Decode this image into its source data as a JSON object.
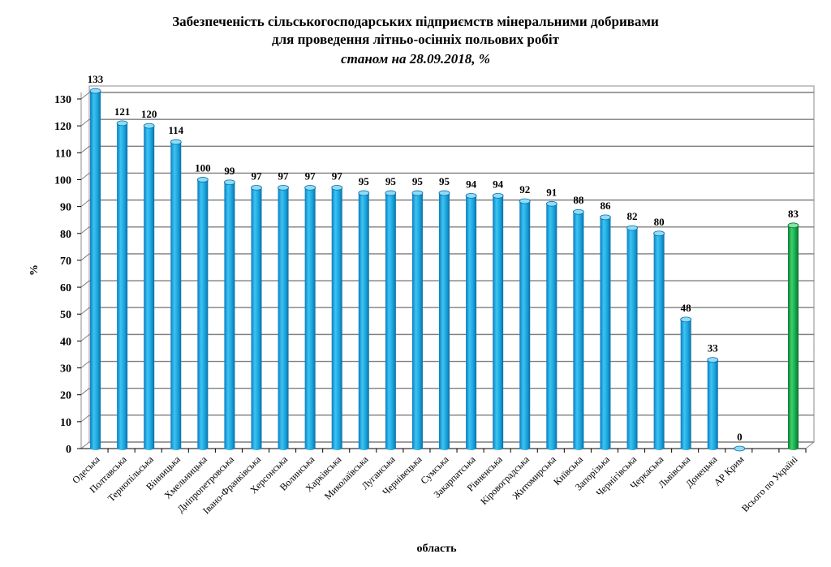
{
  "chart_data": {
    "type": "bar",
    "title": "Забезпеченість сільськогосподарських підприємств мінеральними добривами",
    "subtitle": "для проведення літньо-осінніх польових робіт",
    "date_line": "станом на 28.09.2018, %",
    "xlabel": "область",
    "ylabel": "%",
    "ylim": [
      0,
      130
    ],
    "ytick_step": 10,
    "grid": true,
    "colors": {
      "regions": "#1aa3dc",
      "regions_dark": "#0b6fa8",
      "total": "#14a84a",
      "total_dark": "#0a6e2e",
      "grid": "#7f7f7f"
    },
    "categories": [
      "Одеська",
      "Полтавська",
      "Тернопільська",
      "Вінницька",
      "Хмельницька",
      "Дніпропетровська",
      "Івано-Франківська",
      "Херсонська",
      "Волинська",
      "Харківська",
      "Миколаївська",
      "Луганська",
      "Чернівецька",
      "Сумська",
      "Закарпатська",
      "Рівненська",
      "Кіровоградська",
      "Житомирська",
      "Київська",
      "Запорізька",
      "Чернігівська",
      "Черкаська",
      "Львівська",
      "Донецька",
      "АР Крим",
      "",
      "Всього по Україні"
    ],
    "values": [
      133,
      121,
      120,
      114,
      100,
      99,
      97,
      97,
      97,
      97,
      95,
      95,
      95,
      95,
      94,
      94,
      92,
      91,
      88,
      86,
      82,
      80,
      48,
      33,
      0,
      null,
      83
    ],
    "highlight_index": 26
  }
}
